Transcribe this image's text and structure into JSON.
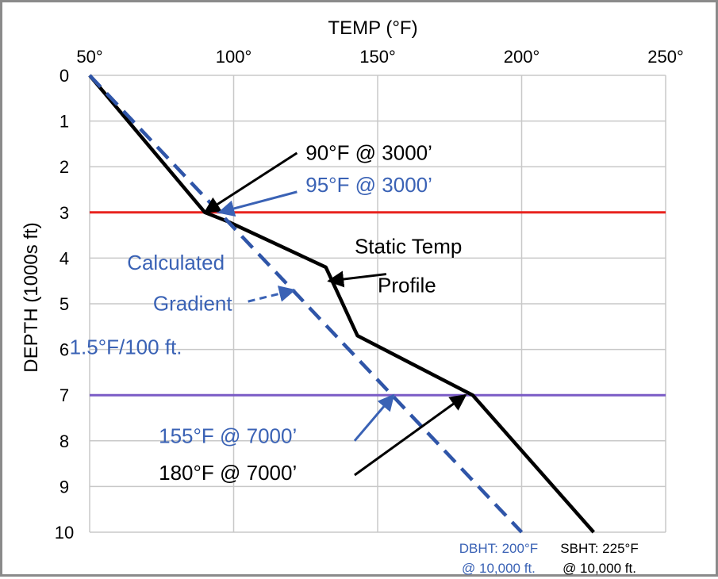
{
  "colors": {
    "static": "#000000",
    "calculated": "#2f55a8",
    "line_3000": "#e8221e",
    "line_7000": "#7a5bc6",
    "grid": "#c8c8c8",
    "annotation_blue": "#3a62b5"
  },
  "chart_data": {
    "type": "line",
    "xlabel": "TEMP (°F)",
    "ylabel": "DEPTH (1000s ft)",
    "x_axis_position": "top",
    "y_axis_inverted": true,
    "xlim": [
      50,
      250
    ],
    "ylim": [
      0,
      10
    ],
    "x_ticks": [
      50,
      100,
      150,
      200,
      250
    ],
    "x_tick_labels": [
      "50°",
      "100°",
      "150°",
      "200°",
      "250°"
    ],
    "y_ticks": [
      0,
      1,
      2,
      3,
      4,
      5,
      6,
      7,
      8,
      9,
      10
    ],
    "y_tick_labels": [
      "0",
      "1",
      "2",
      "3",
      "4",
      "5",
      "6",
      "7",
      "8",
      "9",
      "10"
    ],
    "grid": true,
    "series": [
      {
        "name": "Static Temp Profile",
        "color": "#000000",
        "style": "solid",
        "points": [
          [
            50,
            0
          ],
          [
            90,
            3
          ],
          [
            98,
            3.2
          ],
          [
            132,
            4.2
          ],
          [
            143,
            5.7
          ],
          [
            183,
            7
          ],
          [
            225,
            10
          ]
        ]
      },
      {
        "name": "Calculated Gradient",
        "color": "#2f55a8",
        "style": "dashed",
        "points": [
          [
            50,
            0
          ],
          [
            200,
            10
          ]
        ]
      }
    ],
    "reference_lines": [
      {
        "y": 3,
        "color": "#e8221e"
      },
      {
        "y": 7,
        "color": "#7a5bc6"
      }
    ],
    "annotations": [
      {
        "text": "90°F @ 3000’",
        "color": "#000000",
        "target": [
          90,
          3
        ],
        "text_at": [
          125,
          1.85
        ],
        "arrow_from": [
          122,
          1.7
        ]
      },
      {
        "text": "95°F @ 3000’",
        "color": "#3a62b5",
        "target": [
          95,
          3
        ],
        "text_at": [
          125,
          2.55
        ],
        "arrow_from": [
          122,
          2.55
        ]
      },
      {
        "text": "Static Temp",
        "color": "#000000",
        "text_at": [
          142,
          3.9
        ]
      },
      {
        "text": "Profile",
        "color": "#000000",
        "text_at": [
          150,
          4.75
        ]
      },
      {
        "arrow_only": true,
        "color": "#000000",
        "target": [
          133,
          4.5
        ],
        "arrow_from": [
          153,
          4.35
        ]
      },
      {
        "text": "Calculated",
        "color": "#3a62b5",
        "text_at": [
          63,
          4.25
        ]
      },
      {
        "text": "Gradient",
        "color": "#3a62b5",
        "text_at": [
          72,
          5.15
        ]
      },
      {
        "arrow_only": true,
        "dashed": true,
        "color": "#3a62b5",
        "target": [
          121,
          4.7
        ],
        "arrow_from": [
          105,
          4.95
        ]
      },
      {
        "text": "1.5°F/100 ft.",
        "color": "#3a62b5",
        "text_at": [
          43,
          6.1
        ]
      },
      {
        "text": "155°F @ 7000’",
        "color": "#3a62b5",
        "target": [
          155.5,
          7
        ],
        "text_at": [
          74,
          8.05
        ],
        "arrow_from": [
          142,
          8.0
        ]
      },
      {
        "text": "180°F @ 7000’",
        "color": "#000000",
        "target": [
          180.5,
          7
        ],
        "text_at": [
          74,
          8.85
        ],
        "arrow_from": [
          142,
          8.75
        ]
      }
    ],
    "notes": [
      {
        "line1": "DBHT:  200°F",
        "line2": "@ 10,000 ft.",
        "color": "#3a62b5",
        "x": 192
      },
      {
        "line1": "SBHT:  225°F",
        "line2": "@ 10,000 ft.",
        "color": "#000000",
        "x": 227
      }
    ]
  }
}
